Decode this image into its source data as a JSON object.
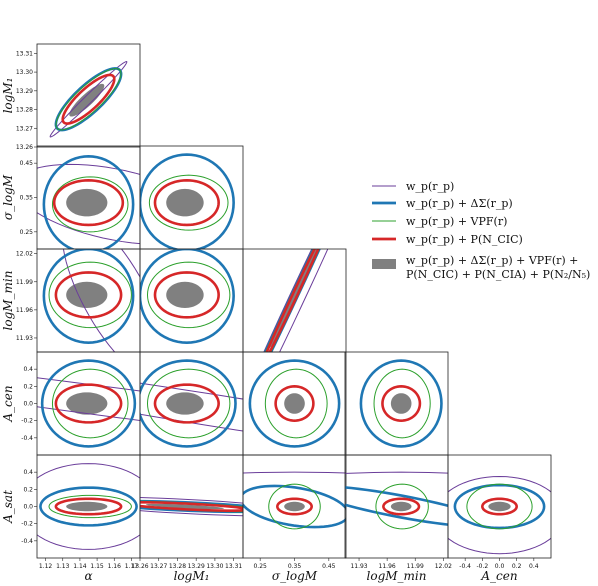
{
  "figure": {
    "parameters": [
      "α",
      "logM₁",
      "σ_logM",
      "logM_min",
      "A_cen",
      "A_sat"
    ],
    "x_axis_labels": [
      "α",
      "logM₁",
      "σ_logM",
      "logM_min",
      "A_cen"
    ],
    "y_axis_labels": [
      "logM₁",
      "σ_logM",
      "logM_min",
      "A_cen",
      "A_sat"
    ]
  },
  "legend": {
    "entries": [
      {
        "label": "w_p(r_p)",
        "color": "#6a3d9a",
        "style": "thin-line"
      },
      {
        "label": "w_p(r_p) + ΔΣ(r_p)",
        "color": "#1f77b4",
        "style": "thick-line"
      },
      {
        "label": "w_p(r_p) + VPF(r)",
        "color": "#2ca02c",
        "style": "thin-line"
      },
      {
        "label": "w_p(r_p) + P(N_CIC)",
        "color": "#d62728",
        "style": "thick-line"
      },
      {
        "label_line1": "w_p(r_p) + ΔΣ(r_p) + VPF(r) +",
        "label_line2": "P(N_CIC) + P(N_CIA) + P(N₂/N₅)",
        "color": "#808080",
        "style": "filled"
      }
    ]
  },
  "chart_data": {
    "type": "corner",
    "parameters": [
      "alpha",
      "logM1",
      "sigma_logM",
      "logMmin",
      "Acen",
      "Asat"
    ],
    "ranges": {
      "alpha": [
        1.115,
        1.175
      ],
      "logM1": [
        13.26,
        13.315
      ],
      "sigma_logM": [
        0.2,
        0.5
      ],
      "logMmin": [
        11.915,
        12.025
      ],
      "Acen": [
        -0.6,
        0.6
      ],
      "Asat": [
        -0.6,
        0.6
      ]
    },
    "ticks": {
      "alpha": {
        "values": [
          1.12,
          1.13,
          1.14,
          1.15,
          1.16,
          1.17
        ],
        "labels": [
          "1.12",
          "1.13",
          "1.14",
          "1.15",
          "1.16",
          "1.17"
        ]
      },
      "logM1_x": {
        "values": [
          13.26,
          13.27,
          13.28,
          13.29,
          13.3,
          13.31
        ],
        "labels": [
          "13.26",
          "13.27",
          "13.28",
          "13.29",
          "13.30",
          "13.31"
        ]
      },
      "logM1_y": {
        "values": [
          13.26,
          13.27,
          13.28,
          13.29,
          13.3,
          13.31
        ],
        "labels": [
          "13.26",
          "13.27",
          "13.28",
          "13.29",
          "13.30",
          "13.31"
        ]
      },
      "sigma_logM_x": {
        "values": [
          0.25,
          0.35,
          0.45
        ],
        "labels": [
          "0.25",
          "0.35",
          "0.45"
        ]
      },
      "sigma_logM_y": {
        "values": [
          0.25,
          0.35,
          0.45
        ],
        "labels": [
          "0.25",
          "0.35",
          "0.45"
        ]
      },
      "logMmin_x": {
        "values": [
          11.93,
          11.96,
          11.99,
          12.02
        ],
        "labels": [
          "11.93",
          "11.96",
          "11.99",
          "12.02"
        ]
      },
      "logMmin_y": {
        "values": [
          11.93,
          11.96,
          11.99,
          12.02
        ],
        "labels": [
          "11.93",
          "11.96",
          "11.99",
          "12.02"
        ]
      },
      "Acen_x": {
        "values": [
          -0.4,
          -0.2,
          0.0,
          0.2,
          0.4
        ],
        "labels": [
          "-0.4",
          "-0.2",
          "0.0",
          "0.2",
          "0.4"
        ]
      },
      "Acen_y": {
        "values": [
          -0.4,
          -0.2,
          0.0,
          0.2,
          0.4
        ],
        "labels": [
          "-0.4",
          "-0.2",
          "0.0",
          "0.2",
          "0.4"
        ]
      },
      "Asat_y": {
        "values": [
          -0.4,
          -0.2,
          0.0,
          0.2,
          0.4
        ],
        "labels": [
          "-0.4",
          "-0.2",
          "0.0",
          "0.2",
          "0.4"
        ]
      }
    },
    "series_styles": [
      {
        "name": "wp",
        "color": "#6a3d9a",
        "kind": "line",
        "width": 1
      },
      {
        "name": "wp+DS",
        "color": "#1f77b4",
        "kind": "line",
        "width": 2.6
      },
      {
        "name": "wp+VPF",
        "color": "#2ca02c",
        "kind": "line",
        "width": 1
      },
      {
        "name": "wp+PNCIC",
        "color": "#d62728",
        "kind": "line",
        "width": 2.6
      },
      {
        "name": "all",
        "color": "#808080",
        "kind": "fill"
      }
    ],
    "panels": [
      {
        "x": "alpha",
        "y": "logM1",
        "ellipses": [
          {
            "series": "wp",
            "cx": 1.145,
            "cy": 13.2855,
            "a": 0.03,
            "b": 0.0022,
            "angle_deg": 42
          },
          {
            "series": "wp+DS",
            "cx": 1.145,
            "cy": 13.2855,
            "a": 0.024,
            "b": 0.0075,
            "angle_deg": 40
          },
          {
            "series": "wp+VPF",
            "cx": 1.145,
            "cy": 13.2855,
            "a": 0.024,
            "b": 0.0071,
            "angle_deg": 40
          },
          {
            "series": "wp+PNCIC",
            "cx": 1.145,
            "cy": 13.2855,
            "a": 0.019,
            "b": 0.0058,
            "angle_deg": 40
          },
          {
            "series": "all",
            "cx": 1.144,
            "cy": 13.285,
            "a": 0.013,
            "b": 0.0033,
            "angle_deg": 40
          }
        ]
      },
      {
        "x": "alpha",
        "y": "sigma_logM",
        "ellipses": [
          {
            "series": "wp",
            "cx": 1.16,
            "cy": 0.33,
            "a": 0.12,
            "b": 0.05,
            "angle_deg": -75
          },
          {
            "series": "wp+DS",
            "cx": 1.145,
            "cy": 0.33,
            "a": 0.026,
            "b": 0.14,
            "angle_deg": 0
          },
          {
            "series": "wp+VPF",
            "cx": 1.146,
            "cy": 0.33,
            "a": 0.022,
            "b": 0.08,
            "angle_deg": 0
          },
          {
            "series": "wp+PNCIC",
            "cx": 1.145,
            "cy": 0.335,
            "a": 0.02,
            "b": 0.065,
            "angle_deg": 0
          },
          {
            "series": "all",
            "cx": 1.144,
            "cy": 0.335,
            "a": 0.012,
            "b": 0.04,
            "angle_deg": 0
          }
        ]
      },
      {
        "x": "logM1",
        "y": "sigma_logM",
        "ellipses": [
          {
            "series": "wp+DS",
            "cx": 13.285,
            "cy": 0.335,
            "a": 0.025,
            "b": 0.14,
            "angle_deg": 0
          },
          {
            "series": "wp+VPF",
            "cx": 13.286,
            "cy": 0.335,
            "a": 0.021,
            "b": 0.08,
            "angle_deg": 0
          },
          {
            "series": "wp+PNCIC",
            "cx": 13.285,
            "cy": 0.335,
            "a": 0.017,
            "b": 0.065,
            "angle_deg": 0
          },
          {
            "series": "all",
            "cx": 13.284,
            "cy": 0.335,
            "a": 0.01,
            "b": 0.04,
            "angle_deg": 0
          }
        ]
      },
      {
        "x": "alpha",
        "y": "logMmin",
        "ellipses": [
          {
            "series": "wp",
            "cx": 1.16,
            "cy": 11.975,
            "a": 0.09,
            "b": 0.02,
            "angle_deg": -75
          },
          {
            "series": "wp+DS",
            "cx": 1.145,
            "cy": 11.975,
            "a": 0.026,
            "b": 0.05,
            "angle_deg": 0
          },
          {
            "series": "wp+VPF",
            "cx": 1.146,
            "cy": 11.976,
            "a": 0.024,
            "b": 0.035,
            "angle_deg": 0
          },
          {
            "series": "wp+PNCIC",
            "cx": 1.145,
            "cy": 11.976,
            "a": 0.019,
            "b": 0.024,
            "angle_deg": 0
          },
          {
            "series": "all",
            "cx": 1.144,
            "cy": 11.976,
            "a": 0.012,
            "b": 0.014,
            "angle_deg": 0
          }
        ]
      },
      {
        "x": "logM1",
        "y": "logMmin",
        "ellipses": [
          {
            "series": "wp+DS",
            "cx": 13.285,
            "cy": 11.975,
            "a": 0.025,
            "b": 0.05,
            "angle_deg": 0
          },
          {
            "series": "wp+VPF",
            "cx": 13.286,
            "cy": 11.976,
            "a": 0.022,
            "b": 0.035,
            "angle_deg": 0
          },
          {
            "series": "wp+PNCIC",
            "cx": 13.285,
            "cy": 11.976,
            "a": 0.017,
            "b": 0.024,
            "angle_deg": 0
          },
          {
            "series": "all",
            "cx": 13.284,
            "cy": 11.976,
            "a": 0.01,
            "b": 0.014,
            "angle_deg": 0
          }
        ]
      },
      {
        "x": "sigma_logM",
        "y": "logMmin",
        "ellipses": [
          {
            "series": "wp",
            "cx": 0.36,
            "cy": 11.975,
            "a": 0.3,
            "b": 0.015,
            "angle_deg": 38
          },
          {
            "series": "wp+DS",
            "cx": 0.35,
            "cy": 11.975,
            "a": 0.19,
            "b": 0.006,
            "angle_deg": 38
          },
          {
            "series": "wp+VPF",
            "cx": 0.35,
            "cy": 11.975,
            "a": 0.16,
            "b": 0.006,
            "angle_deg": 38
          },
          {
            "series": "wp+PNCIC",
            "cx": 0.35,
            "cy": 11.975,
            "a": 0.12,
            "b": 0.0045,
            "angle_deg": 38
          },
          {
            "series": "all",
            "cx": 0.35,
            "cy": 11.975,
            "a": 0.09,
            "b": 0.003,
            "angle_deg": 38
          }
        ]
      },
      {
        "x": "alpha",
        "y": "Acen",
        "ellipses": [
          {
            "series": "wp",
            "cx": 1.165,
            "cy": 0.0,
            "a": 0.8,
            "b": 0.06,
            "angle_deg": -70
          },
          {
            "series": "wp+DS",
            "cx": 1.145,
            "cy": 0.0,
            "a": 0.027,
            "b": 0.5,
            "angle_deg": 0
          },
          {
            "series": "wp+VPF",
            "cx": 1.146,
            "cy": 0.0,
            "a": 0.022,
            "b": 0.4,
            "angle_deg": 0
          },
          {
            "series": "wp+PNCIC",
            "cx": 1.145,
            "cy": 0.0,
            "a": 0.019,
            "b": 0.22,
            "angle_deg": 0
          },
          {
            "series": "all",
            "cx": 1.144,
            "cy": 0.0,
            "a": 0.012,
            "b": 0.13,
            "angle_deg": 0
          }
        ]
      },
      {
        "x": "logM1",
        "y": "Acen",
        "ellipses": [
          {
            "series": "wp",
            "cx": 13.305,
            "cy": -0.1,
            "a": 0.7,
            "b": 0.05,
            "angle_deg": -75
          },
          {
            "series": "wp+DS",
            "cx": 13.285,
            "cy": 0.0,
            "a": 0.026,
            "b": 0.5,
            "angle_deg": 0
          },
          {
            "series": "wp+VPF",
            "cx": 13.286,
            "cy": 0.0,
            "a": 0.022,
            "b": 0.4,
            "angle_deg": 0
          },
          {
            "series": "wp+PNCIC",
            "cx": 13.285,
            "cy": 0.0,
            "a": 0.017,
            "b": 0.22,
            "angle_deg": 0
          },
          {
            "series": "all",
            "cx": 13.284,
            "cy": 0.0,
            "a": 0.01,
            "b": 0.13,
            "angle_deg": 0
          }
        ]
      },
      {
        "x": "sigma_logM",
        "y": "Acen",
        "ellipses": [
          {
            "series": "wp+DS",
            "cx": 0.35,
            "cy": 0.0,
            "a": 0.13,
            "b": 0.5,
            "angle_deg": 0
          },
          {
            "series": "wp+VPF",
            "cx": 0.355,
            "cy": 0.0,
            "a": 0.09,
            "b": 0.4,
            "angle_deg": 0
          },
          {
            "series": "wp+PNCIC",
            "cx": 0.35,
            "cy": 0.0,
            "a": 0.055,
            "b": 0.2,
            "angle_deg": 0
          },
          {
            "series": "all",
            "cx": 0.35,
            "cy": 0.0,
            "a": 0.03,
            "b": 0.12,
            "angle_deg": 0
          }
        ]
      },
      {
        "x": "logMmin",
        "y": "Acen",
        "ellipses": [
          {
            "series": "wp+DS",
            "cx": 11.975,
            "cy": 0.0,
            "a": 0.043,
            "b": 0.5,
            "angle_deg": 0
          },
          {
            "series": "wp+VPF",
            "cx": 11.976,
            "cy": 0.0,
            "a": 0.03,
            "b": 0.4,
            "angle_deg": 0
          },
          {
            "series": "wp+PNCIC",
            "cx": 11.975,
            "cy": 0.0,
            "a": 0.02,
            "b": 0.2,
            "angle_deg": 0
          },
          {
            "series": "all",
            "cx": 11.975,
            "cy": 0.0,
            "a": 0.011,
            "b": 0.12,
            "angle_deg": 0
          }
        ]
      },
      {
        "x": "alpha",
        "y": "Asat",
        "ellipses": [
          {
            "series": "wp",
            "cx": 1.145,
            "cy": 0.0,
            "a": 0.04,
            "b": 0.5,
            "angle_deg": 0
          },
          {
            "series": "wp+DS",
            "cx": 1.145,
            "cy": 0.0,
            "a": 0.028,
            "b": 0.22,
            "angle_deg": 0
          },
          {
            "series": "wp+VPF",
            "cx": 1.146,
            "cy": 0.0,
            "a": 0.024,
            "b": 0.13,
            "angle_deg": 0
          },
          {
            "series": "wp+PNCIC",
            "cx": 1.145,
            "cy": 0.0,
            "a": 0.019,
            "b": 0.09,
            "angle_deg": 0
          },
          {
            "series": "all",
            "cx": 1.144,
            "cy": 0.0,
            "a": 0.012,
            "b": 0.055,
            "angle_deg": 0
          }
        ]
      },
      {
        "x": "logM1",
        "y": "Asat",
        "ellipses": [
          {
            "series": "wp",
            "cx": 13.285,
            "cy": 0.0,
            "a": 0.045,
            "b": 0.12,
            "angle_deg": 25
          },
          {
            "series": "wp+DS",
            "cx": 13.285,
            "cy": 0.0,
            "a": 0.03,
            "b": 0.07,
            "angle_deg": 30
          },
          {
            "series": "wp+VPF",
            "cx": 13.286,
            "cy": 0.0,
            "a": 0.025,
            "b": 0.07,
            "angle_deg": 30
          },
          {
            "series": "wp+PNCIC",
            "cx": 13.285,
            "cy": 0.0,
            "a": 0.02,
            "b": 0.055,
            "angle_deg": 30
          },
          {
            "series": "all",
            "cx": 13.284,
            "cy": 0.0,
            "a": 0.013,
            "b": 0.035,
            "angle_deg": 30
          }
        ]
      },
      {
        "x": "sigma_logM",
        "y": "Asat",
        "ellipses": [
          {
            "series": "wp",
            "cx": 0.35,
            "cy": -0.35,
            "a": 1.0,
            "b": 0.75,
            "angle_deg": 0
          },
          {
            "series": "wp+DS",
            "cx": 0.35,
            "cy": 0.0,
            "a": 0.14,
            "b": 0.25,
            "angle_deg": 20
          },
          {
            "series": "wp+VPF",
            "cx": 0.35,
            "cy": 0.0,
            "a": 0.075,
            "b": 0.26,
            "angle_deg": 0
          },
          {
            "series": "wp+PNCIC",
            "cx": 0.35,
            "cy": 0.0,
            "a": 0.05,
            "b": 0.09,
            "angle_deg": 0
          },
          {
            "series": "all",
            "cx": 0.35,
            "cy": 0.0,
            "a": 0.03,
            "b": 0.055,
            "angle_deg": 0
          }
        ]
      },
      {
        "x": "logMmin",
        "y": "Asat",
        "ellipses": [
          {
            "series": "wp",
            "cx": 11.975,
            "cy": -0.35,
            "a": 0.3,
            "b": 0.75,
            "angle_deg": 0
          },
          {
            "series": "wp+DS",
            "cx": 11.975,
            "cy": 0.0,
            "a": 0.05,
            "b": 0.25,
            "angle_deg": 20
          },
          {
            "series": "wp+VPF",
            "cx": 11.976,
            "cy": 0.0,
            "a": 0.028,
            "b": 0.26,
            "angle_deg": 0
          },
          {
            "series": "wp+PNCIC",
            "cx": 11.975,
            "cy": 0.0,
            "a": 0.019,
            "b": 0.09,
            "angle_deg": 0
          },
          {
            "series": "all",
            "cx": 11.975,
            "cy": 0.0,
            "a": 0.011,
            "b": 0.055,
            "angle_deg": 0
          }
        ]
      },
      {
        "x": "Acen",
        "y": "Asat",
        "ellipses": [
          {
            "series": "wp",
            "cx": 0.0,
            "cy": -0.1,
            "a": 0.75,
            "b": 0.45,
            "angle_deg": 0
          },
          {
            "series": "wp+DS",
            "cx": 0.0,
            "cy": 0.0,
            "a": 0.52,
            "b": 0.25,
            "angle_deg": 0
          },
          {
            "series": "wp+VPF",
            "cx": 0.0,
            "cy": 0.0,
            "a": 0.38,
            "b": 0.26,
            "angle_deg": 0
          },
          {
            "series": "wp+PNCIC",
            "cx": 0.0,
            "cy": 0.0,
            "a": 0.2,
            "b": 0.09,
            "angle_deg": 0
          },
          {
            "series": "all",
            "cx": 0.0,
            "cy": 0.0,
            "a": 0.13,
            "b": 0.055,
            "angle_deg": 0
          }
        ]
      }
    ]
  }
}
